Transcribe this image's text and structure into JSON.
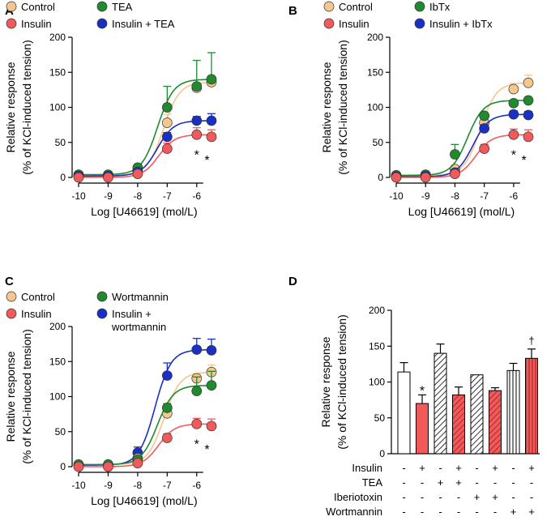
{
  "colors": {
    "control": "#f6c68f",
    "insulin": "#f05a5a",
    "treat": "#1f8a2e",
    "combo": "#1a2fc4",
    "axis": "#000000"
  },
  "chart_data": [
    {
      "panel": "A",
      "type": "line",
      "xlabel": "Log [U46619] (mol/L)",
      "ylabel_line1": "Relative response",
      "ylabel_line2": "(% of KCl-induced tension)",
      "xlim": [
        -10,
        -5.5
      ],
      "ylim": [
        0,
        200
      ],
      "xticks": [
        -10,
        -9,
        -8,
        -7,
        -6
      ],
      "yticks": [
        0,
        50,
        100,
        150,
        200
      ],
      "x": [
        -10,
        -9,
        -8,
        -7,
        -6,
        -5.5
      ],
      "legend": [
        {
          "key": "control",
          "label": "Control"
        },
        {
          "key": "treat",
          "label": "TEA"
        },
        {
          "key": "insulin",
          "label": "Insulin"
        },
        {
          "key": "combo",
          "label": "Insulin + TEA"
        }
      ],
      "series": [
        {
          "key": "control",
          "name": "Control",
          "values": [
            3,
            3,
            10,
            78,
            128,
            136
          ],
          "err": [
            3,
            3,
            4,
            12,
            4,
            6
          ]
        },
        {
          "key": "treat",
          "name": "TEA",
          "values": [
            4,
            4,
            14,
            100,
            130,
            140
          ],
          "err": [
            3,
            3,
            4,
            30,
            37,
            38
          ]
        },
        {
          "key": "combo",
          "name": "Insulin + TEA",
          "values": [
            2,
            2,
            8,
            58,
            81,
            81
          ],
          "err": [
            2,
            2,
            3,
            6,
            6,
            10
          ]
        },
        {
          "key": "insulin",
          "name": "Insulin",
          "values": [
            0,
            0,
            5,
            41,
            61,
            58
          ],
          "err": [
            2,
            2,
            3,
            8,
            10,
            10
          ]
        }
      ],
      "annotations": [
        {
          "x": -6,
          "y": 35,
          "text": "*"
        },
        {
          "x": -5.65,
          "y": 28,
          "text": "*"
        }
      ]
    },
    {
      "panel": "B",
      "type": "line",
      "xlabel": "Log [U46619] (mol/L)",
      "ylabel_line1": "Relative response",
      "ylabel_line2": "(% of KCl-induced tension)",
      "xlim": [
        -10,
        -5.5
      ],
      "ylim": [
        0,
        200
      ],
      "xticks": [
        -10,
        -9,
        -8,
        -7,
        -6
      ],
      "yticks": [
        0,
        50,
        100,
        150,
        200
      ],
      "x": [
        -10,
        -9,
        -8,
        -7,
        -6,
        -5.5
      ],
      "legend": [
        {
          "key": "control",
          "label": "Control"
        },
        {
          "key": "treat",
          "label": "IbTx"
        },
        {
          "key": "insulin",
          "label": "Insulin"
        },
        {
          "key": "combo",
          "label": "Insulin + IbTx"
        }
      ],
      "series": [
        {
          "key": "control",
          "name": "Control",
          "values": [
            3,
            3,
            12,
            78,
            126,
            135
          ],
          "err": [
            3,
            3,
            5,
            6,
            8,
            11
          ]
        },
        {
          "key": "treat",
          "name": "IbTx",
          "values": [
            3,
            4,
            33,
            88,
            106,
            110
          ],
          "err": [
            3,
            3,
            14,
            4,
            4,
            4
          ]
        },
        {
          "key": "combo",
          "name": "Insulin + IbTx",
          "values": [
            1,
            2,
            7,
            70,
            90,
            89
          ],
          "err": [
            2,
            2,
            3,
            5,
            5,
            5
          ]
        },
        {
          "key": "insulin",
          "name": "Insulin",
          "values": [
            0,
            0,
            5,
            41,
            61,
            58
          ],
          "err": [
            2,
            2,
            3,
            6,
            8,
            10
          ]
        }
      ],
      "annotations": [
        {
          "x": -6,
          "y": 35,
          "text": "*"
        },
        {
          "x": -5.65,
          "y": 28,
          "text": "*"
        }
      ]
    },
    {
      "panel": "C",
      "type": "line",
      "xlabel": "Log [U46619] (mol/L)",
      "ylabel_line1": "Relative response",
      "ylabel_line2": "(% of KCl-induced tension)",
      "xlim": [
        -10,
        -5.5
      ],
      "ylim": [
        0,
        200
      ],
      "xticks": [
        -10,
        -9,
        -8,
        -7,
        -6
      ],
      "yticks": [
        0,
        50,
        100,
        150,
        200
      ],
      "x": [
        -10,
        -9,
        -8,
        -7,
        -6,
        -5.5
      ],
      "legend": [
        {
          "key": "control",
          "label": "Control"
        },
        {
          "key": "treat",
          "label": "Wortmannin"
        },
        {
          "key": "insulin",
          "label": "Insulin"
        },
        {
          "key": "combo",
          "label": "Insulin +",
          "label2": "wortmannin"
        }
      ],
      "series": [
        {
          "key": "combo",
          "name": "Insulin + wortmannin",
          "values": [
            2,
            2,
            20,
            130,
            167,
            166
          ],
          "err": [
            2,
            2,
            8,
            18,
            16,
            16
          ]
        },
        {
          "key": "control",
          "name": "Control",
          "values": [
            3,
            3,
            12,
            76,
            126,
            135
          ],
          "err": [
            3,
            3,
            4,
            6,
            7,
            10
          ]
        },
        {
          "key": "treat",
          "name": "Wortmannin",
          "values": [
            3,
            3,
            10,
            84,
            108,
            116
          ],
          "err": [
            3,
            3,
            4,
            6,
            20,
            20
          ]
        },
        {
          "key": "insulin",
          "name": "Insulin",
          "values": [
            0,
            0,
            5,
            41,
            61,
            58
          ],
          "err": [
            2,
            2,
            3,
            6,
            8,
            10
          ]
        }
      ],
      "annotations": [
        {
          "x": -6,
          "y": 35,
          "text": "*"
        },
        {
          "x": -5.65,
          "y": 28,
          "text": "*"
        }
      ]
    },
    {
      "panel": "D",
      "type": "bar",
      "ylabel_line1": "Relative response",
      "ylabel_line2": "(% of KCl-induced tension)",
      "ylim": [
        0,
        200
      ],
      "yticks": [
        0,
        50,
        100,
        150,
        200
      ],
      "bars": [
        {
          "value": 114,
          "err": 13,
          "fill": "white",
          "pattern": "none",
          "annot": ""
        },
        {
          "value": 70,
          "err": 12,
          "fill": "red",
          "pattern": "none",
          "annot": "*"
        },
        {
          "value": 140,
          "err": 13,
          "fill": "white",
          "pattern": "hatch",
          "annot": ""
        },
        {
          "value": 82,
          "err": 11,
          "fill": "red",
          "pattern": "hatch",
          "annot": ""
        },
        {
          "value": 110,
          "err": 0,
          "fill": "white",
          "pattern": "hatch",
          "annot": ""
        },
        {
          "value": 88,
          "err": 4,
          "fill": "red",
          "pattern": "hatch",
          "annot": ""
        },
        {
          "value": 116,
          "err": 10,
          "fill": "white",
          "pattern": "vline",
          "annot": ""
        },
        {
          "value": 133,
          "err": 13,
          "fill": "red",
          "pattern": "vline",
          "annot": "†"
        }
      ],
      "conditions": [
        {
          "label": "Insulin",
          "marks": [
            "-",
            "+",
            "-",
            "+",
            "-",
            "+",
            "-",
            "+"
          ]
        },
        {
          "label": "TEA",
          "marks": [
            "-",
            "-",
            "+",
            "+",
            "-",
            "-",
            "-",
            "-"
          ]
        },
        {
          "label": "Iberiotoxin",
          "marks": [
            "-",
            "-",
            "-",
            "-",
            "+",
            "+",
            "-",
            "-"
          ]
        },
        {
          "label": "Wortmannin",
          "marks": [
            "-",
            "-",
            "-",
            "-",
            "-",
            "-",
            "+",
            "+"
          ]
        }
      ]
    }
  ]
}
